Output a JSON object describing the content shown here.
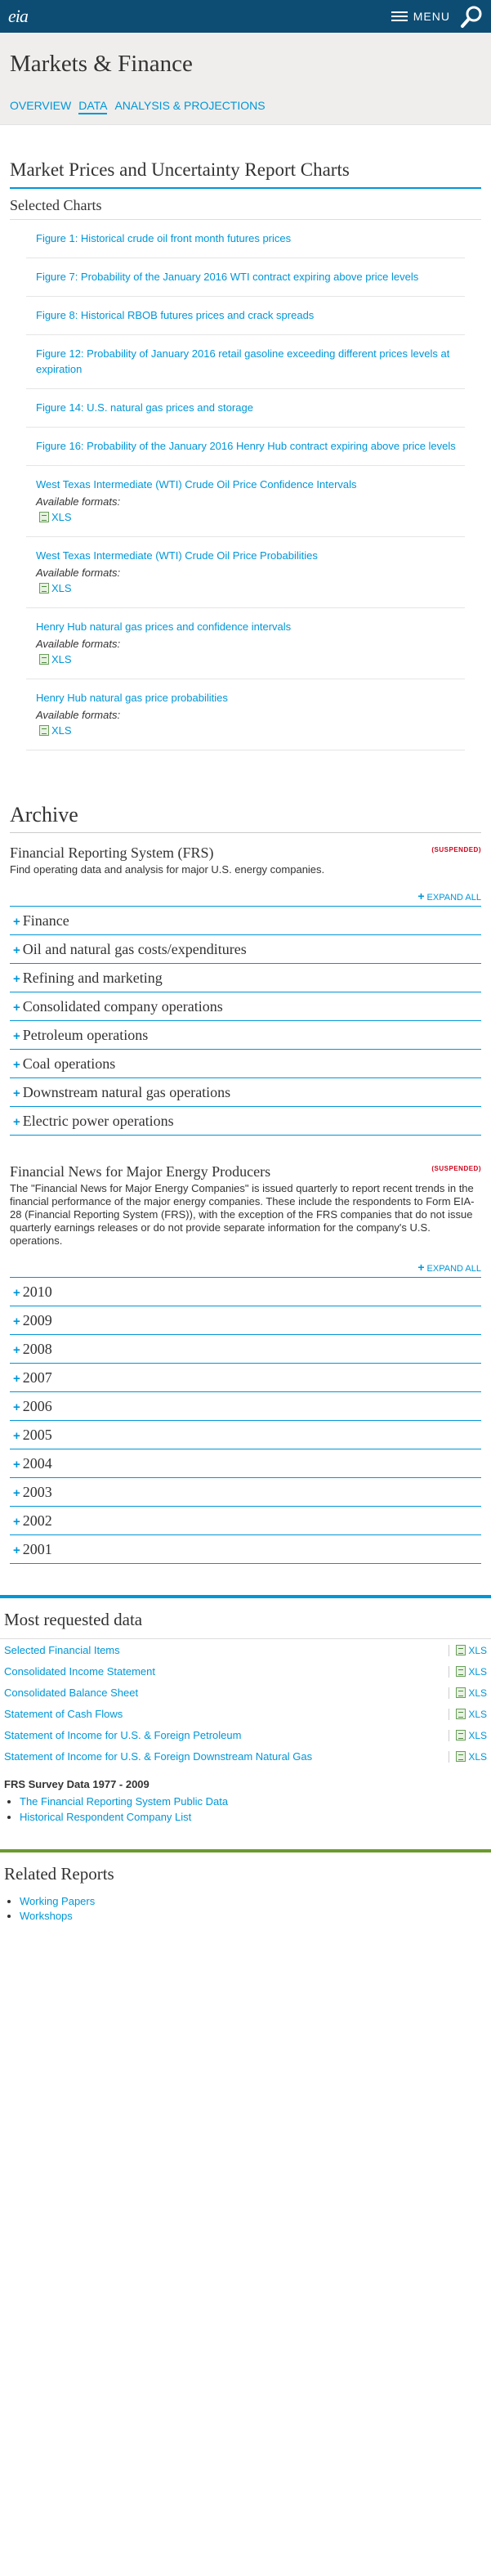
{
  "header": {
    "logo": "eia",
    "menu_label": "MENU"
  },
  "hero": {
    "title": "Markets & Finance",
    "tabs": [
      {
        "label": "OVERVIEW"
      },
      {
        "label": "DATA"
      },
      {
        "label": "ANALYSIS & PROJECTIONS"
      }
    ]
  },
  "section": {
    "title": "Market Prices and Uncertainty Report Charts",
    "selected_title": "Selected Charts"
  },
  "charts": {
    "items": [
      {
        "label": "Figure 1: Historical crude oil front month futures prices"
      },
      {
        "label": "Figure 7: Probability of the January 2016 WTI contract expiring above price levels"
      },
      {
        "label": "Figure 8: Historical RBOB futures prices and crack spreads"
      },
      {
        "label": "Figure 12: Probability of January 2016 retail gasoline exceeding different prices levels at expiration"
      },
      {
        "label": "Figure 14: U.S. natural gas prices and storage"
      },
      {
        "label": "Figure 16: Probability of the January 2016 Henry Hub contract expiring above price levels"
      },
      {
        "label": "West Texas Intermediate (WTI) Crude Oil Price Confidence Intervals",
        "formats": "Available formats:",
        "file": "XLS"
      },
      {
        "label": "West Texas Intermediate (WTI) Crude Oil Price Probabilities",
        "formats": "Available formats:",
        "file": "XLS"
      },
      {
        "label": "Henry Hub natural gas prices and confidence intervals",
        "formats": "Available formats:",
        "file": "XLS"
      },
      {
        "label": "Henry Hub natural gas price probabilities",
        "formats": "Available formats:",
        "file": "XLS"
      }
    ]
  },
  "archive": {
    "title": "Archive",
    "frs": {
      "title": "Financial Reporting System (FRS)",
      "status": "(SUSPENDED)",
      "description": "Find operating data and analysis for major U.S. energy companies.",
      "expand": "EXPAND ALL",
      "items": [
        {
          "label": "Finance"
        },
        {
          "label": "Oil and natural gas costs/expenditures"
        },
        {
          "label": "Refining and marketing"
        },
        {
          "label": "Consolidated company operations"
        },
        {
          "label": "Petroleum operations"
        },
        {
          "label": "Coal operations"
        },
        {
          "label": "Downstream natural gas operations"
        },
        {
          "label": "Electric power operations"
        }
      ]
    },
    "news": {
      "title": "Financial News for Major Energy Producers",
      "status": "(SUSPENDED)",
      "description": "The \"Financial News for Major Energy Companies\" is issued quarterly to report recent trends in the financial performance of the major energy companies. These include the respondents to Form EIA-28 (Financial Reporting System (FRS)), with the exception of the FRS companies that do not issue quarterly earnings releases or do not provide separate information for the company's U.S. operations.",
      "expand": "EXPAND ALL",
      "years": [
        {
          "label": "2010"
        },
        {
          "label": "2009"
        },
        {
          "label": "2008"
        },
        {
          "label": "2007"
        },
        {
          "label": "2006"
        },
        {
          "label": "2005"
        },
        {
          "label": "2004"
        },
        {
          "label": "2003"
        },
        {
          "label": "2002"
        },
        {
          "label": "2001"
        }
      ]
    }
  },
  "most_requested": {
    "title": "Most requested data",
    "items": [
      {
        "label": "Selected Financial Items",
        "format": "XLS"
      },
      {
        "label": "Consolidated Income Statement",
        "format": "XLS"
      },
      {
        "label": "Consolidated Balance Sheet",
        "format": "XLS"
      },
      {
        "label": "Statement of Cash Flows",
        "format": "XLS"
      },
      {
        "label": "Statement of Income for U.S. & Foreign Petroleum",
        "format": "XLS"
      },
      {
        "label": "Statement of Income for U.S. & Foreign Downstream Natural Gas",
        "format": "XLS"
      }
    ],
    "frs_survey": {
      "title": "FRS Survey Data 1977 - 2009",
      "links": [
        {
          "label": "The Financial Reporting System Public Data"
        },
        {
          "label": "Historical Respondent Company List"
        }
      ]
    }
  },
  "related": {
    "title": "Related Reports",
    "links": [
      {
        "label": "Working Papers"
      },
      {
        "label": "Workshops"
      }
    ]
  },
  "colors": {
    "accent": "#0096d7",
    "header_bg": "#0d4d74",
    "suspended": "#d0021b",
    "related_border": "#6a9a2e"
  }
}
